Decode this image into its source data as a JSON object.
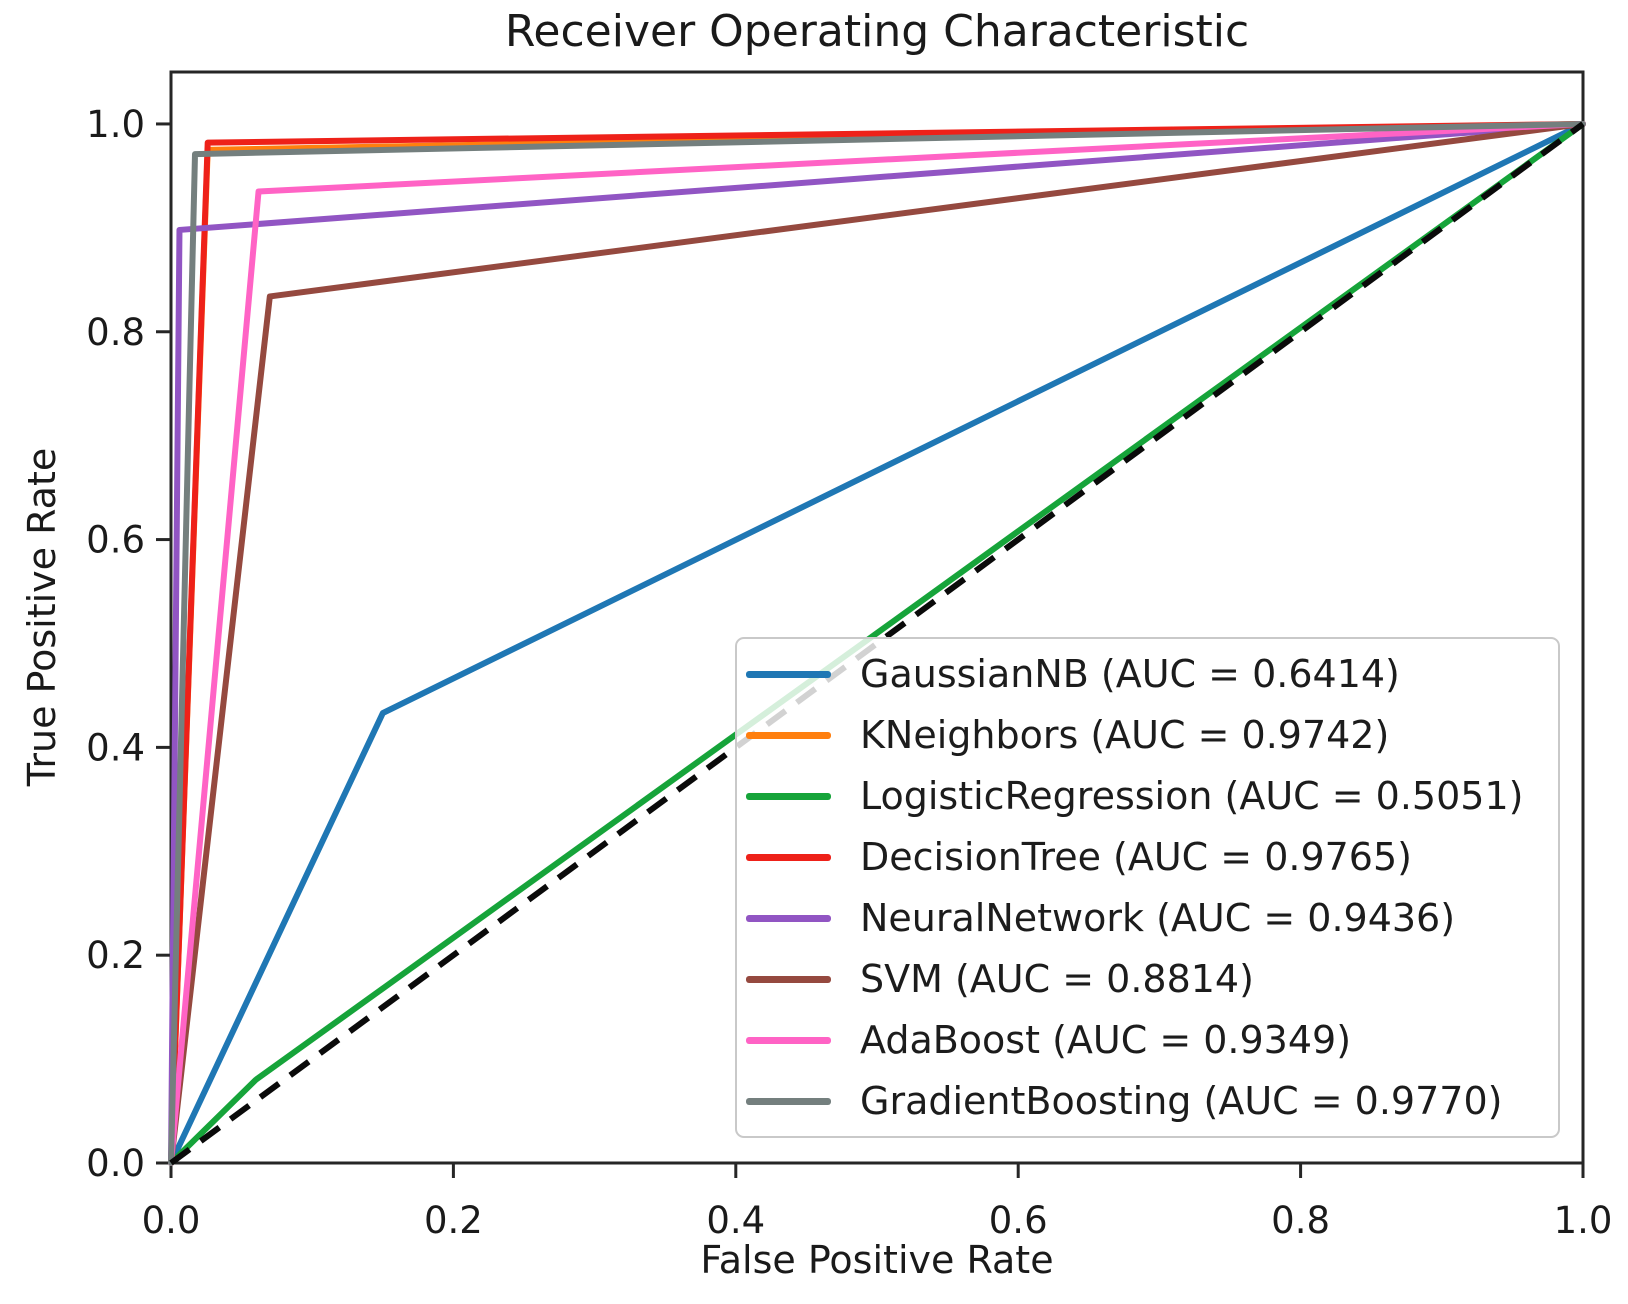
{
  "chart_data": {
    "type": "line",
    "title": "Receiver Operating Characteristic",
    "xlabel": "False Positive Rate",
    "ylabel": "True Positive Rate",
    "xlim": [
      0.0,
      1.0
    ],
    "ylim": [
      0.0,
      1.05
    ],
    "grid": false,
    "legend_position": "lower-right-inside",
    "legend_label_format": "{name} (AUC = {auc})",
    "x_ticks": {
      "values": [
        0.0,
        0.2,
        0.4,
        0.6,
        0.8,
        1.0
      ],
      "labels": [
        "0.0",
        "0.2",
        "0.4",
        "0.6",
        "0.8",
        "1.0"
      ]
    },
    "y_ticks": {
      "values": [
        0.0,
        0.2,
        0.4,
        0.6,
        0.8,
        1.0
      ],
      "labels": [
        "0.0",
        "0.2",
        "0.4",
        "0.6",
        "0.8",
        "1.0"
      ]
    },
    "series": [
      {
        "name": "GaussianNB",
        "auc": "0.6414",
        "color": "#1f77b4",
        "style": "solid",
        "points": [
          [
            0.0,
            0.0
          ],
          [
            0.15,
            0.433
          ],
          [
            1.0,
            1.0
          ]
        ]
      },
      {
        "name": "KNeighbors",
        "auc": "0.9742",
        "color": "#ff7f0e",
        "style": "solid",
        "points": [
          [
            0.0,
            0.0
          ],
          [
            0.026,
            0.975
          ],
          [
            1.0,
            1.0
          ]
        ]
      },
      {
        "name": "LogisticRegression",
        "auc": "0.5051",
        "color": "#16a43a",
        "style": "solid",
        "points": [
          [
            0.0,
            0.0
          ],
          [
            0.06,
            0.08
          ],
          [
            0.5,
            0.51
          ],
          [
            1.0,
            1.0
          ]
        ]
      },
      {
        "name": "DecisionTree",
        "auc": "0.9765",
        "color": "#ee2119",
        "style": "solid",
        "points": [
          [
            0.0,
            0.0
          ],
          [
            0.026,
            0.982
          ],
          [
            1.0,
            1.0
          ]
        ]
      },
      {
        "name": "NeuralNetwork",
        "auc": "0.9436",
        "color": "#9155c3",
        "style": "solid",
        "points": [
          [
            0.0,
            0.0
          ],
          [
            0.006,
            0.898
          ],
          [
            1.0,
            1.0
          ]
        ]
      },
      {
        "name": "SVM",
        "auc": "0.8814",
        "color": "#95493f",
        "style": "solid",
        "points": [
          [
            0.0,
            0.0
          ],
          [
            0.07,
            0.834
          ],
          [
            1.0,
            1.0
          ]
        ]
      },
      {
        "name": "AdaBoost",
        "auc": "0.9349",
        "color": "#ff63c5",
        "style": "solid",
        "points": [
          [
            0.0,
            0.0
          ],
          [
            0.062,
            0.935
          ],
          [
            1.0,
            1.0
          ]
        ]
      },
      {
        "name": "GradientBoosting",
        "auc": "0.9770",
        "color": "#747f7e",
        "style": "solid",
        "points": [
          [
            0.0,
            0.0
          ],
          [
            0.017,
            0.971
          ],
          [
            1.0,
            1.0
          ]
        ]
      }
    ],
    "reference_line": {
      "name": "chance-diagonal",
      "color": "#0a0a0a",
      "style": "dashed",
      "points": [
        [
          0.0,
          0.0
        ],
        [
          1.0,
          1.0
        ]
      ]
    },
    "axis_color": "#262626"
  }
}
